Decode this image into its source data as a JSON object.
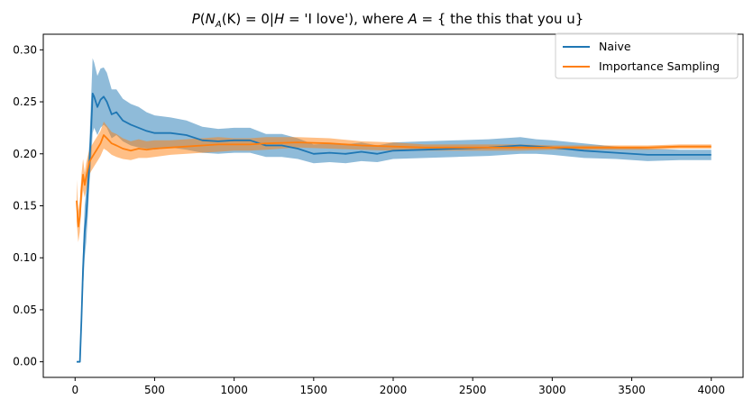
{
  "chart_data": {
    "type": "line",
    "title": "P(N_A(K) = 0 | H = 'I love'), where A = { the this that you u}",
    "title_parts": {
      "P": "P",
      "open": "(",
      "N": "N",
      "A": "A",
      "K": "(K) = 0|",
      "H": "H",
      "cond": " = 'I love'), where ",
      "A2": "A",
      "set": " = { the this that you u}"
    },
    "xlim": [
      -200,
      4200
    ],
    "ylim": [
      -0.015,
      0.315
    ],
    "x_ticks": [
      0,
      500,
      1000,
      1500,
      2000,
      2500,
      3000,
      3500,
      4000
    ],
    "x_tick_labels": [
      "0",
      "500",
      "1000",
      "1500",
      "2000",
      "2500",
      "3000",
      "3500",
      "4000"
    ],
    "y_ticks": [
      0.0,
      0.05,
      0.1,
      0.15,
      0.2,
      0.25,
      0.3
    ],
    "y_tick_labels": [
      "0.00",
      "0.05",
      "0.10",
      "0.15",
      "0.20",
      "0.25",
      "0.30"
    ],
    "legend_position": "top-right",
    "grid": false,
    "series": [
      {
        "name": "Naive",
        "color": "#1f77b4",
        "band_color": "#1f77b4",
        "x": [
          10,
          30,
          40,
          50,
          60,
          70,
          80,
          90,
          100,
          110,
          120,
          140,
          160,
          180,
          200,
          230,
          260,
          300,
          350,
          400,
          450,
          500,
          600,
          700,
          800,
          900,
          1000,
          1100,
          1200,
          1300,
          1400,
          1500,
          1600,
          1700,
          1800,
          1900,
          2000,
          2200,
          2400,
          2600,
          2800,
          2900,
          3000,
          3200,
          3400,
          3600,
          3800,
          4000
        ],
        "y": [
          0.0,
          0.0,
          0.04,
          0.09,
          0.125,
          0.14,
          0.165,
          0.19,
          0.22,
          0.258,
          0.255,
          0.245,
          0.252,
          0.255,
          0.25,
          0.238,
          0.24,
          0.232,
          0.228,
          0.225,
          0.222,
          0.22,
          0.22,
          0.218,
          0.213,
          0.212,
          0.213,
          0.213,
          0.208,
          0.208,
          0.205,
          0.2,
          0.201,
          0.2,
          0.202,
          0.2,
          0.203,
          0.204,
          0.205,
          0.206,
          0.208,
          0.207,
          0.206,
          0.203,
          0.201,
          0.199,
          0.199,
          0.199
        ],
        "lower": [
          0.0,
          0.0,
          0.03,
          0.07,
          0.1,
          0.115,
          0.14,
          0.17,
          0.19,
          0.22,
          0.225,
          0.218,
          0.225,
          0.228,
          0.225,
          0.215,
          0.218,
          0.212,
          0.208,
          0.206,
          0.205,
          0.204,
          0.206,
          0.204,
          0.201,
          0.2,
          0.201,
          0.201,
          0.197,
          0.197,
          0.195,
          0.191,
          0.192,
          0.191,
          0.193,
          0.192,
          0.195,
          0.196,
          0.197,
          0.198,
          0.2,
          0.2,
          0.199,
          0.196,
          0.195,
          0.193,
          0.194,
          0.194
        ],
        "upper": [
          0.0,
          0.0,
          0.05,
          0.11,
          0.15,
          0.165,
          0.19,
          0.21,
          0.25,
          0.292,
          0.288,
          0.275,
          0.282,
          0.283,
          0.278,
          0.262,
          0.262,
          0.253,
          0.248,
          0.245,
          0.24,
          0.237,
          0.235,
          0.232,
          0.226,
          0.224,
          0.225,
          0.225,
          0.219,
          0.219,
          0.215,
          0.209,
          0.21,
          0.209,
          0.211,
          0.208,
          0.211,
          0.212,
          0.213,
          0.214,
          0.216,
          0.214,
          0.213,
          0.21,
          0.207,
          0.205,
          0.204,
          0.204
        ]
      },
      {
        "name": "Importance Sampling",
        "color": "#ff7f0e",
        "band_color": "#ff7f0e",
        "x": [
          10,
          20,
          30,
          40,
          50,
          60,
          70,
          80,
          90,
          100,
          120,
          140,
          160,
          180,
          200,
          230,
          260,
          300,
          350,
          400,
          450,
          500,
          600,
          700,
          800,
          900,
          1000,
          1100,
          1200,
          1400,
          1600,
          1800,
          2000,
          2200,
          2400,
          2600,
          2800,
          3000,
          3200,
          3400,
          3600,
          3800,
          4000
        ],
        "y": [
          0.155,
          0.13,
          0.14,
          0.165,
          0.18,
          0.17,
          0.178,
          0.185,
          0.192,
          0.195,
          0.2,
          0.205,
          0.21,
          0.218,
          0.215,
          0.21,
          0.208,
          0.205,
          0.203,
          0.205,
          0.204,
          0.205,
          0.206,
          0.207,
          0.208,
          0.209,
          0.209,
          0.209,
          0.21,
          0.211,
          0.21,
          0.208,
          0.207,
          0.206,
          0.206,
          0.206,
          0.206,
          0.206,
          0.206,
          0.206,
          0.206,
          0.207,
          0.207
        ],
        "lower": [
          0.135,
          0.115,
          0.125,
          0.15,
          0.165,
          0.158,
          0.165,
          0.172,
          0.18,
          0.183,
          0.188,
          0.193,
          0.198,
          0.205,
          0.203,
          0.199,
          0.197,
          0.195,
          0.194,
          0.196,
          0.196,
          0.197,
          0.199,
          0.2,
          0.201,
          0.202,
          0.203,
          0.203,
          0.204,
          0.206,
          0.205,
          0.204,
          0.203,
          0.203,
          0.203,
          0.203,
          0.203,
          0.204,
          0.204,
          0.204,
          0.204,
          0.205,
          0.205
        ],
        "upper": [
          0.175,
          0.145,
          0.155,
          0.18,
          0.195,
          0.182,
          0.191,
          0.198,
          0.204,
          0.207,
          0.212,
          0.217,
          0.222,
          0.231,
          0.227,
          0.221,
          0.219,
          0.215,
          0.212,
          0.214,
          0.212,
          0.213,
          0.213,
          0.214,
          0.215,
          0.216,
          0.215,
          0.215,
          0.216,
          0.216,
          0.215,
          0.212,
          0.211,
          0.209,
          0.209,
          0.209,
          0.209,
          0.208,
          0.208,
          0.208,
          0.208,
          0.209,
          0.209
        ]
      }
    ]
  }
}
